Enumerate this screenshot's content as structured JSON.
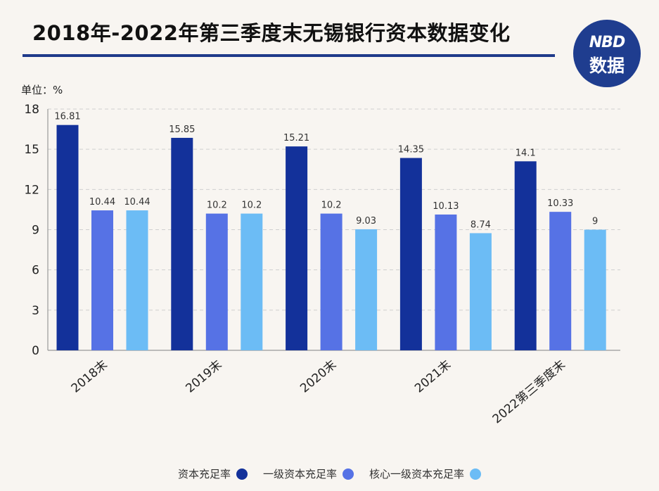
{
  "title": "2018年-2022年第三季度末无锡银行资本数据变化",
  "unit_label": "单位：%",
  "logo": {
    "top": "NBD",
    "bottom": "数据"
  },
  "colors": {
    "series": [
      "#13319a",
      "#5672e5",
      "#6cbcf5"
    ],
    "logo_bg": "#1f3d8f",
    "rule": "#1f3a8a",
    "axis": "#999999",
    "grid": "#cfcfcf"
  },
  "chart_data": {
    "type": "bar",
    "categories": [
      "2018末",
      "2019末",
      "2020末",
      "2021末",
      "2022第三季度末"
    ],
    "series": [
      {
        "name": "资本充足率",
        "values": [
          16.81,
          15.85,
          15.21,
          14.35,
          14.1
        ]
      },
      {
        "name": "一级资本充足率",
        "values": [
          10.44,
          10.2,
          10.2,
          10.13,
          10.33
        ]
      },
      {
        "name": "核心一级资本充足率",
        "values": [
          10.44,
          10.2,
          9.03,
          8.74,
          9
        ]
      }
    ],
    "value_labels": [
      [
        "16.81",
        "15.85",
        "15.21",
        "14.35",
        "14.1"
      ],
      [
        "10.44",
        "10.2",
        "10.2",
        "10.13",
        "10.33"
      ],
      [
        "10.44",
        "10.2",
        "9.03",
        "8.74",
        "9"
      ]
    ],
    "yticks": [
      0,
      3,
      6,
      9,
      12,
      15,
      18
    ],
    "ylim": [
      0,
      18
    ],
    "grid": true,
    "legend_position": "bottom"
  }
}
